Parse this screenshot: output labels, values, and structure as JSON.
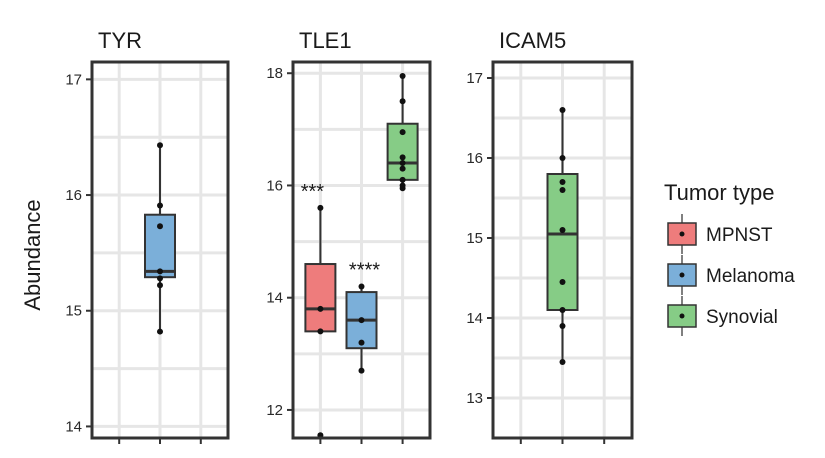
{
  "chart_data": {
    "type": "box",
    "y_axis_title": "Abundance",
    "grid": true,
    "legend": {
      "title": "Tumor type",
      "placement": "right",
      "items": [
        {
          "label": "MPNST",
          "color": "#ee7c7c"
        },
        {
          "label": "Melanoma",
          "color": "#7bafd9"
        },
        {
          "label": "Synovial",
          "color": "#86cc86"
        }
      ]
    },
    "panels": [
      {
        "title": "TYR",
        "ylim": [
          13.9,
          17.15
        ],
        "yticks": [
          "14",
          "15",
          "16",
          "17"
        ],
        "boxes": [
          {
            "group": "Melanoma",
            "slot": 1,
            "q1": 15.29,
            "median": 15.34,
            "q3": 15.83,
            "whisker_low": 14.82,
            "whisker_high": 16.43,
            "points": [
              16.43,
              15.91,
              15.73,
              15.34,
              15.28,
              15.22,
              14.82
            ],
            "label": ""
          }
        ]
      },
      {
        "title": "TLE1",
        "ylim": [
          11.5,
          18.2
        ],
        "yticks": [
          "12",
          "14",
          "16",
          "18"
        ],
        "boxes": [
          {
            "group": "MPNST",
            "slot": 0,
            "q1": 13.4,
            "median": 13.8,
            "q3": 14.6,
            "whisker_low": 13.4,
            "whisker_high": 15.6,
            "points": [
              15.6,
              13.8,
              13.4,
              11.55
            ],
            "label": "***"
          },
          {
            "group": "Melanoma",
            "slot": 1,
            "q1": 13.1,
            "median": 13.6,
            "q3": 14.1,
            "whisker_low": 12.7,
            "whisker_high": 14.2,
            "points": [
              14.2,
              13.6,
              13.2,
              12.7
            ],
            "label": "****"
          },
          {
            "group": "Synovial",
            "slot": 2,
            "q1": 16.1,
            "median": 16.4,
            "q3": 17.1,
            "whisker_low": 15.95,
            "whisker_high": 17.95,
            "points": [
              17.95,
              17.5,
              16.95,
              16.5,
              16.4,
              16.3,
              16.1,
              16.0,
              15.95
            ],
            "label": ""
          }
        ]
      },
      {
        "title": "ICAM5",
        "ylim": [
          12.5,
          17.2
        ],
        "yticks": [
          "13",
          "14",
          "15",
          "16",
          "17"
        ],
        "boxes": [
          {
            "group": "Synovial",
            "slot": 1,
            "q1": 14.1,
            "median": 15.05,
            "q3": 15.8,
            "whisker_low": 13.45,
            "whisker_high": 16.6,
            "points": [
              16.6,
              16.0,
              15.7,
              15.6,
              15.1,
              14.45,
              14.1,
              13.9,
              13.45
            ],
            "label": ""
          }
        ]
      }
    ]
  }
}
